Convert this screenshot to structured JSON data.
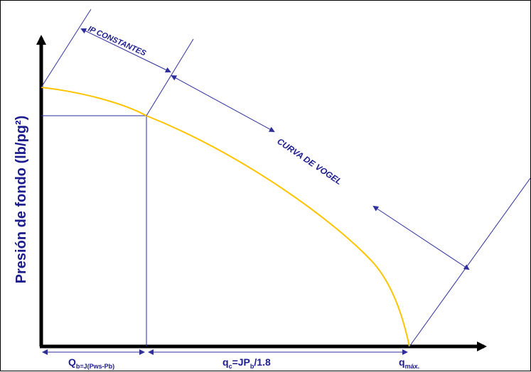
{
  "colors": {
    "axis": "#000000",
    "curve": "#ffc400",
    "guide": "#2e2e9c",
    "label": "#1c1c8c"
  },
  "labels": {
    "y_axis": "Presión de fondo (lb/pg²)",
    "ip_constantes": "IP CONSTANTES",
    "curva_de_vogel": "CURVA DE VOGEL",
    "qb_main": "Q",
    "qb_sub": "b=J(Pws-Pb)",
    "qc_q": "q",
    "qc_sub": "c",
    "qc_mid": "=JP",
    "qc_sub2": "b",
    "qc_end": "/1.8",
    "qmax_main": "q",
    "qmax_sub": "máx."
  }
}
